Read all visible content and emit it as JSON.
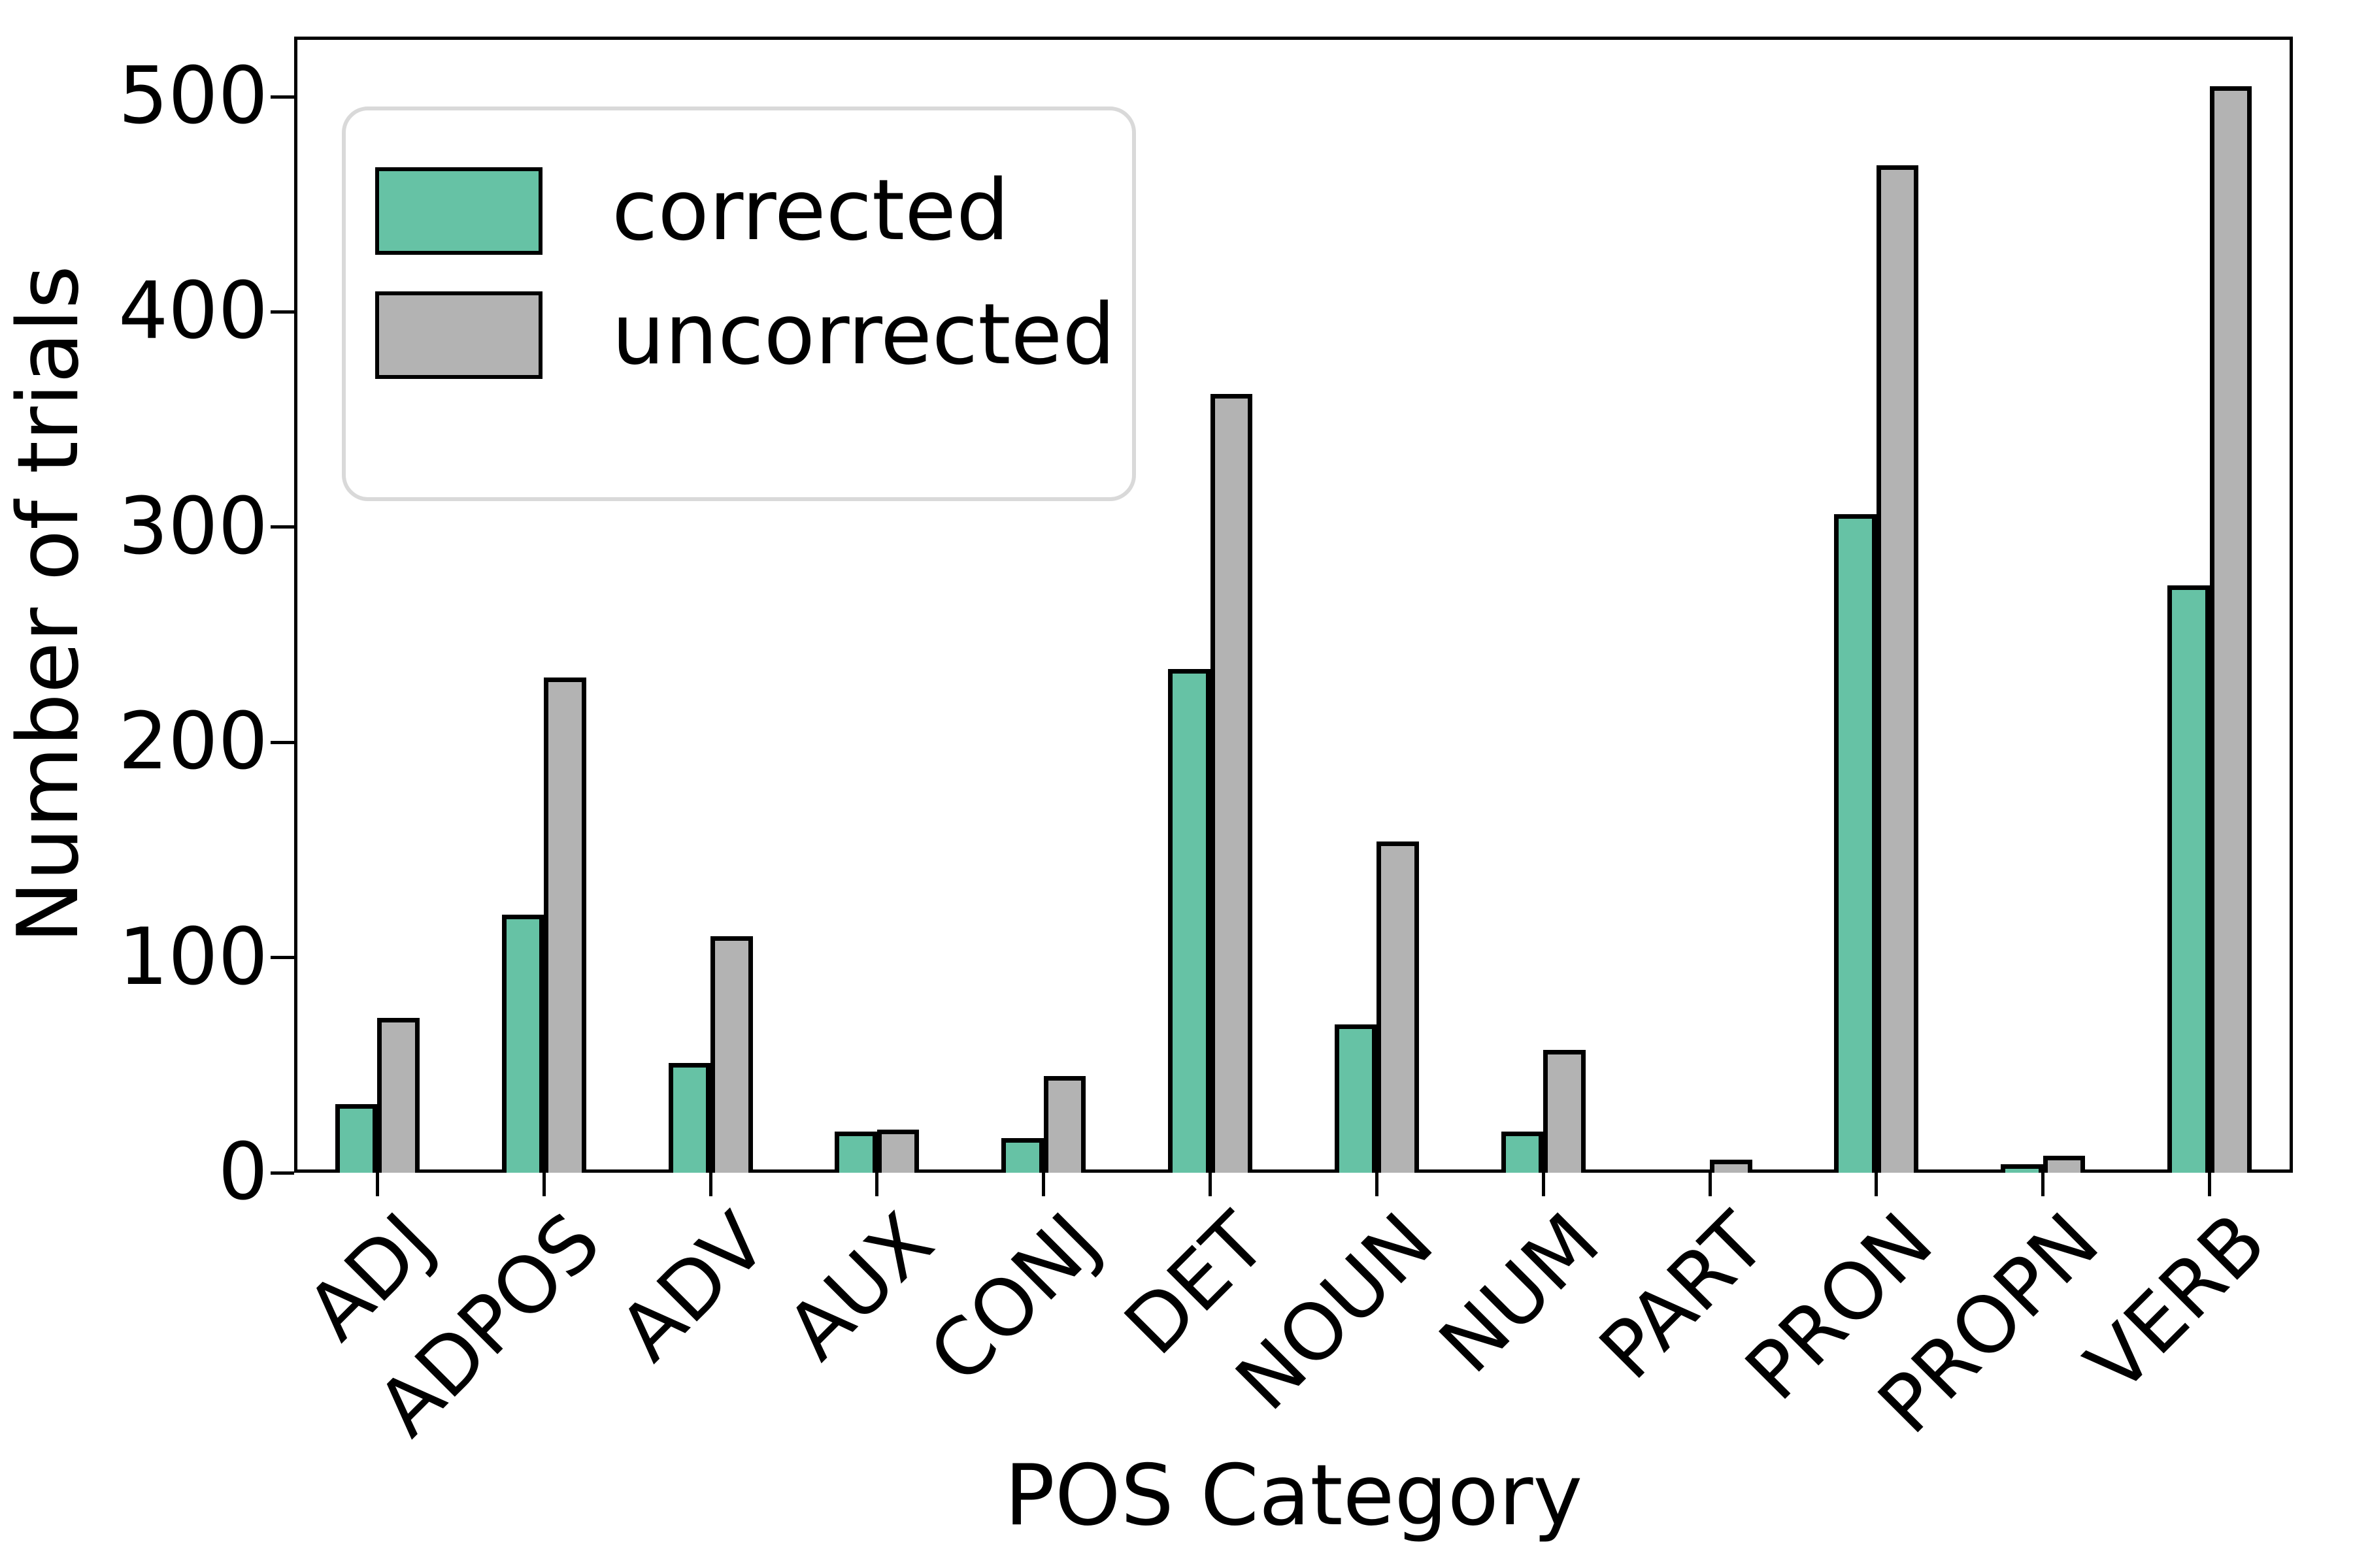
{
  "figure": {
    "background": "#ffffff",
    "axis_color": "#000000",
    "text_color": "#000000"
  },
  "chart_data": {
    "type": "bar",
    "title": "",
    "xlabel": "POS Category",
    "ylabel": "Number of trials",
    "categories": [
      "ADJ",
      "ADPOS",
      "ADV",
      "AUX",
      "CONJ",
      "DET",
      "NOUN",
      "NUM",
      "PART",
      "PRON",
      "PROPN",
      "VERB"
    ],
    "series": [
      {
        "name": "corrected",
        "color": "#66c2a5",
        "values": [
          32,
          120,
          51,
          19,
          16,
          234,
          69,
          19,
          0,
          306,
          4,
          273
        ]
      },
      {
        "name": "uncorrected",
        "color": "#b3b3b3",
        "values": [
          72,
          230,
          110,
          20,
          45,
          362,
          154,
          57,
          6,
          468,
          8,
          505
        ]
      }
    ],
    "yticks": [
      0,
      100,
      200,
      300,
      400,
      500
    ],
    "ylim": [
      0,
      528
    ],
    "grid": false,
    "legend_position": "upper left",
    "bar_edgecolor": "#000000",
    "legend_border_color": "#d9d9d9"
  }
}
